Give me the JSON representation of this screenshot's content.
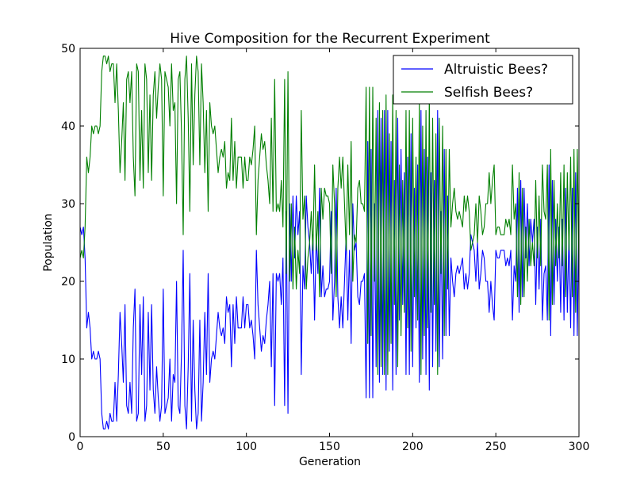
{
  "chart_data": {
    "type": "line",
    "title": "Hive Composition for the Recurrent Experiment",
    "xlabel": "Generation",
    "ylabel": "Population",
    "xlim": [
      0,
      300
    ],
    "ylim": [
      0,
      50
    ],
    "xticks": [
      0,
      50,
      100,
      150,
      200,
      250,
      300
    ],
    "yticks": [
      0,
      10,
      20,
      30,
      40,
      50
    ],
    "grid": false,
    "legend": "top-right",
    "series": [
      {
        "name": "Altruistic Bees?",
        "color": "#0000ff",
        "values": [
          27,
          26,
          27,
          23,
          14,
          16,
          14,
          10,
          11,
          10,
          10,
          11,
          10,
          3,
          1,
          1,
          2,
          1,
          3,
          2,
          2,
          7,
          2,
          8,
          16,
          12,
          7,
          17,
          4,
          3,
          7,
          3,
          14,
          19,
          2,
          3,
          17,
          8,
          18,
          2,
          4,
          16,
          6,
          17,
          6,
          3,
          9,
          5,
          2,
          4,
          19,
          3,
          4,
          5,
          10,
          2,
          8,
          7,
          20,
          4,
          3,
          11,
          24,
          4,
          1,
          9,
          21,
          2,
          15,
          6,
          1,
          3,
          15,
          2,
          7,
          16,
          8,
          21,
          7,
          10,
          11,
          10,
          13,
          16,
          14,
          13,
          14,
          12,
          18,
          16,
          17,
          9,
          17,
          12,
          18,
          14,
          14,
          14,
          18,
          14,
          17,
          17,
          14,
          15,
          13,
          10,
          24,
          17,
          14,
          11,
          13,
          12,
          15,
          17,
          20,
          9,
          21,
          4,
          21,
          20,
          21,
          17,
          23,
          4,
          29,
          3,
          30,
          20,
          31,
          23,
          31,
          26,
          29,
          8,
          22,
          19,
          31,
          27,
          25,
          21,
          26,
          15,
          26,
          21,
          32,
          18,
          22,
          18,
          19,
          19,
          20,
          29,
          15,
          20,
          32,
          18,
          14,
          18,
          14,
          20,
          26,
          15,
          24,
          12,
          30,
          24,
          25,
          18,
          17,
          20,
          20,
          21,
          5,
          38,
          5,
          37,
          5,
          30,
          9,
          42,
          7,
          41,
          8,
          42,
          6,
          42,
          11,
          38,
          6,
          33,
          8,
          41,
          15,
          37,
          17,
          34,
          8,
          36,
          8,
          39,
          9,
          32,
          14,
          35,
          7,
          42,
          10,
          37,
          8,
          36,
          6,
          34,
          9,
          33,
          11,
          42,
          9,
          29,
          10,
          37,
          13,
          31,
          13,
          23,
          20,
          18,
          21,
          22,
          21,
          22,
          23,
          19,
          21,
          19,
          21,
          26,
          25,
          24,
          20,
          25,
          19,
          21,
          24,
          23,
          20,
          20,
          16,
          20,
          17,
          15,
          24,
          23,
          23,
          24,
          24,
          24,
          22,
          23,
          22,
          24,
          15,
          22,
          20,
          32,
          16,
          33,
          18,
          32,
          23,
          30,
          22,
          28,
          25,
          28,
          17,
          27,
          19,
          28,
          15,
          21,
          22,
          15,
          35,
          13,
          33,
          17,
          28,
          20,
          27,
          16,
          28,
          15,
          32,
          16,
          26,
          14,
          32,
          13,
          34,
          13,
          29,
          13,
          22,
          20
        ]
      },
      {
        "name": "Selfish Bees?",
        "color": "#007f00",
        "values": [
          23,
          24,
          23,
          27,
          36,
          34,
          36,
          40,
          39,
          40,
          40,
          39,
          40,
          47,
          49,
          49,
          48,
          49,
          47,
          48,
          48,
          43,
          48,
          42,
          34,
          38,
          43,
          33,
          46,
          47,
          43,
          47,
          36,
          31,
          48,
          47,
          33,
          42,
          32,
          48,
          46,
          34,
          44,
          33,
          44,
          47,
          41,
          45,
          48,
          46,
          31,
          47,
          46,
          45,
          40,
          48,
          42,
          43,
          30,
          46,
          47,
          39,
          26,
          46,
          49,
          41,
          29,
          48,
          35,
          44,
          49,
          47,
          35,
          48,
          43,
          34,
          42,
          29,
          43,
          40,
          39,
          40,
          37,
          34,
          36,
          37,
          36,
          38,
          32,
          34,
          33,
          41,
          33,
          38,
          32,
          36,
          36,
          36,
          32,
          36,
          33,
          33,
          36,
          35,
          37,
          40,
          26,
          33,
          36,
          39,
          37,
          38,
          35,
          33,
          30,
          41,
          29,
          46,
          29,
          30,
          29,
          33,
          27,
          46,
          21,
          47,
          20,
          30,
          19,
          27,
          19,
          24,
          21,
          42,
          28,
          31,
          19,
          23,
          25,
          29,
          24,
          35,
          24,
          29,
          18,
          32,
          28,
          32,
          31,
          31,
          30,
          21,
          35,
          30,
          18,
          32,
          36,
          32,
          36,
          30,
          24,
          35,
          26,
          38,
          20,
          26,
          25,
          32,
          33,
          30,
          30,
          29,
          45,
          12,
          45,
          13,
          45,
          20,
          41,
          8,
          43,
          9,
          42,
          8,
          44,
          8,
          39,
          12,
          44,
          17,
          42,
          9,
          35,
          13,
          33,
          16,
          42,
          14,
          42,
          11,
          41,
          18,
          36,
          15,
          43,
          8,
          40,
          13,
          42,
          14,
          44,
          16,
          41,
          17,
          39,
          8,
          41,
          21,
          40,
          13,
          37,
          19,
          37,
          27,
          30,
          32,
          29,
          28,
          29,
          28,
          27,
          31,
          29,
          31,
          29,
          24,
          25,
          26,
          30,
          25,
          31,
          29,
          26,
          27,
          30,
          30,
          34,
          30,
          33,
          35,
          26,
          27,
          27,
          26,
          26,
          26,
          28,
          27,
          28,
          26,
          35,
          28,
          30,
          18,
          34,
          17,
          32,
          18,
          27,
          20,
          28,
          22,
          25,
          22,
          33,
          23,
          31,
          22,
          35,
          29,
          28,
          35,
          15,
          37,
          17,
          33,
          22,
          30,
          23,
          34,
          22,
          35,
          18,
          34,
          24,
          36,
          18,
          37,
          16,
          37,
          21,
          37,
          28,
          30
        ]
      }
    ]
  }
}
